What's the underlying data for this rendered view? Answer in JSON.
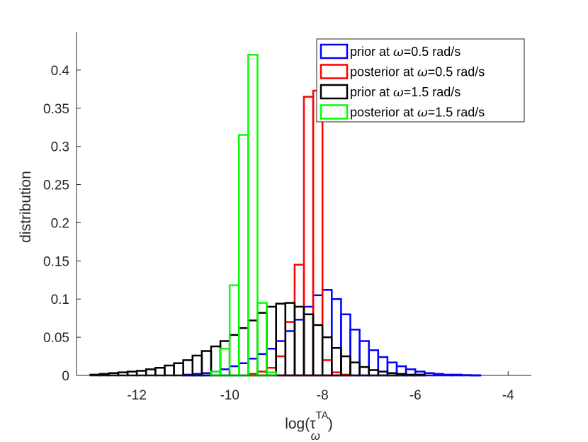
{
  "chart_data": {
    "type": "histogram",
    "xlabel": "log(τ",
    "xlabel_super": "TA",
    "xlabel_sub": "ω",
    "xlabel_close": ")",
    "ylabel": "distribution",
    "xlim": [
      -13.3,
      -3.5
    ],
    "ylim": [
      0,
      0.45
    ],
    "bin_width": 0.2,
    "xticks": [
      {
        "value": -12,
        "label": "-12"
      },
      {
        "value": -10,
        "label": "-10"
      },
      {
        "value": -8,
        "label": "-8"
      },
      {
        "value": -6,
        "label": "-6"
      },
      {
        "value": -4,
        "label": "-4"
      }
    ],
    "yticks": [
      {
        "value": 0,
        "label": "0"
      },
      {
        "value": 0.05,
        "label": "0.05"
      },
      {
        "value": 0.1,
        "label": "0.1"
      },
      {
        "value": 0.15,
        "label": "0.15"
      },
      {
        "value": 0.2,
        "label": "0.2"
      },
      {
        "value": 0.25,
        "label": "0.25"
      },
      {
        "value": 0.3,
        "label": "0.3"
      },
      {
        "value": 0.35,
        "label": "0.35"
      },
      {
        "value": 0.4,
        "label": "0.4"
      }
    ],
    "legend_position": "top-right",
    "series": [
      {
        "name": "prior at ω=0.5 rad/s",
        "legend_prefix": "prior at ",
        "color": "#0000ff",
        "x_start": -11.0,
        "values": [
          0.001,
          0.002,
          0.003,
          0.005,
          0.008,
          0.012,
          0.016,
          0.022,
          0.028,
          0.035,
          0.045,
          0.058,
          0.073,
          0.09,
          0.105,
          0.112,
          0.1,
          0.08,
          0.06,
          0.045,
          0.033,
          0.024,
          0.017,
          0.012,
          0.008,
          0.005,
          0.003,
          0.002,
          0.001,
          0.001,
          0.0005,
          0.0003
        ]
      },
      {
        "name": "posterior at ω=0.5 rad/s",
        "legend_prefix": "posterior at ",
        "color": "#ff0000",
        "x_start": -9.6,
        "values": [
          0.002,
          0.005,
          0.01,
          0.025,
          0.07,
          0.145,
          0.365,
          0.373,
          0.02,
          0.004,
          0.001
        ]
      },
      {
        "name": "prior at ω=1.5 rad/s",
        "legend_prefix": "prior at ",
        "color": "#000000",
        "x_start": -13.0,
        "values": [
          0.001,
          0.002,
          0.003,
          0.004,
          0.005,
          0.006,
          0.008,
          0.01,
          0.013,
          0.016,
          0.02,
          0.026,
          0.032,
          0.038,
          0.045,
          0.053,
          0.062,
          0.072,
          0.082,
          0.09,
          0.094,
          0.095,
          0.09,
          0.08,
          0.066,
          0.05,
          0.036,
          0.025,
          0.017,
          0.011,
          0.007,
          0.005,
          0.003,
          0.002,
          0.001,
          0.001
        ]
      },
      {
        "name": "posterior at ω=1.5 rad/s",
        "legend_prefix": "posterior at ",
        "color": "#00ff00",
        "x_start": -10.4,
        "values": [
          0.005,
          0.035,
          0.118,
          0.315,
          0.42,
          0.095,
          0.004
        ]
      }
    ],
    "legend": [
      {
        "prefix": "prior at ",
        "omega": "ω",
        "suffix": "=0.5 rad/s",
        "color": "#0000ff"
      },
      {
        "prefix": "posterior at ",
        "omega": "ω",
        "suffix": "=0.5 rad/s",
        "color": "#ff0000"
      },
      {
        "prefix": "prior at ",
        "omega": "ω",
        "suffix": "=1.5 rad/s",
        "color": "#000000"
      },
      {
        "prefix": "posterior at ",
        "omega": "ω",
        "suffix": "=1.5 rad/s",
        "color": "#00ff00"
      }
    ]
  }
}
